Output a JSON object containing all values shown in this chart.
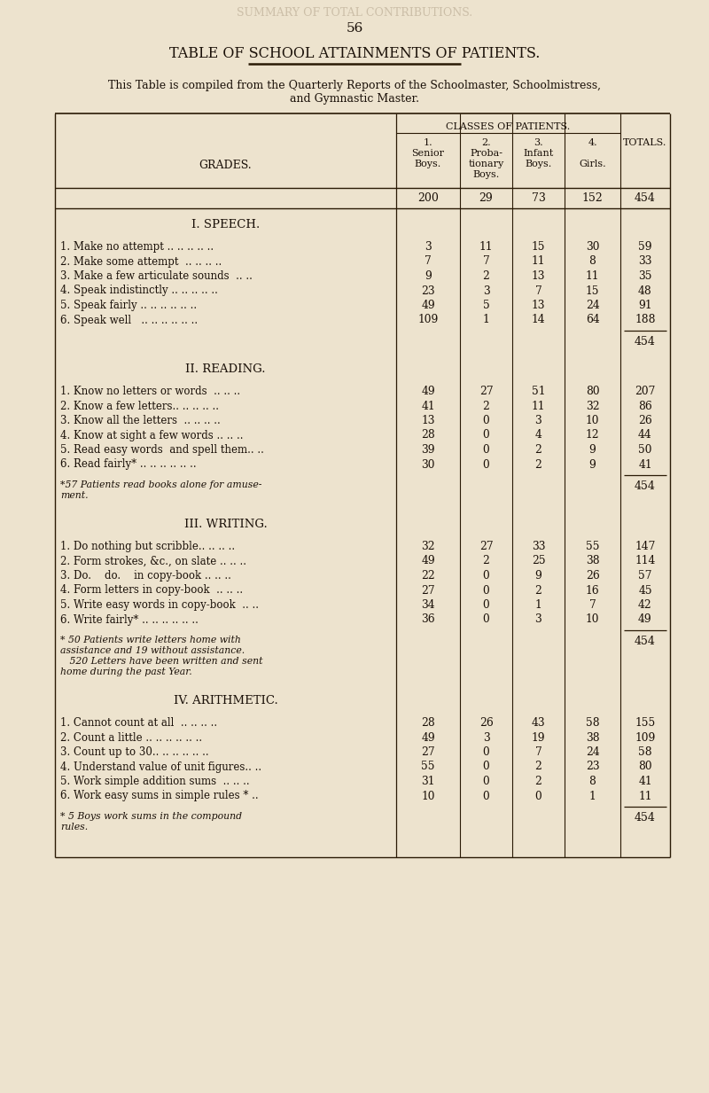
{
  "page_number": "56",
  "title": "TABLE OF SCHOOL ATTAINMENTS OF PATIENTS.",
  "subtitle1": "This Table is compiled from the Quarterly Reports of the Schoolmaster, Schoolmistress,",
  "subtitle2": "and Gymnastic Master.",
  "bg_color": "#ede3ce",
  "text_color": "#1a1008",
  "classes_header": "CLASSES OF PATIENTS.",
  "grades_label": "GRADES.",
  "totals_row": [
    "200",
    "29",
    "73",
    "152",
    "454"
  ],
  "sections": [
    {
      "title": "I. SPEECH.",
      "rows": [
        [
          "1. Make no attempt .. .. .. .. ..",
          "3",
          "11",
          "15",
          "30",
          "59"
        ],
        [
          "2. Make some attempt  .. .. .. ..",
          "7",
          "7",
          "11",
          "8",
          "33"
        ],
        [
          "3. Make a few articulate sounds  .. ..",
          "9",
          "2",
          "13",
          "11",
          "35"
        ],
        [
          "4. Speak indistinctly .. .. .. .. ..",
          "23",
          "3",
          "7",
          "15",
          "48"
        ],
        [
          "5. Speak fairly .. .. .. .. .. ..",
          "49",
          "5",
          "13",
          "24",
          "91"
        ],
        [
          "6. Speak well   .. .. .. .. .. ..",
          "109",
          "1",
          "14",
          "64",
          "188"
        ]
      ],
      "subtotal": "454",
      "footnote": null
    },
    {
      "title": "II. READING.",
      "rows": [
        [
          "1. Know no letters or words  .. .. ..",
          "49",
          "27",
          "51",
          "80",
          "207"
        ],
        [
          "2. Know a few letters.. .. .. .. ..",
          "41",
          "2",
          "11",
          "32",
          "86"
        ],
        [
          "3. Know all the letters  .. .. .. ..",
          "13",
          "0",
          "3",
          "10",
          "26"
        ],
        [
          "4. Know at sight a few words .. .. ..",
          "28",
          "0",
          "4",
          "12",
          "44"
        ],
        [
          "5. Read easy words  and spell them.. ..",
          "39",
          "0",
          "2",
          "9",
          "50"
        ],
        [
          "6. Read fairly* .. .. .. .. .. ..",
          "30",
          "0",
          "2",
          "9",
          "41"
        ]
      ],
      "subtotal": "454",
      "footnote": [
        "*57 Patients read books alone for amuse-",
        "ment."
      ]
    },
    {
      "title": "III. WRITING.",
      "rows": [
        [
          "1. Do nothing but scribble.. .. .. ..",
          "32",
          "27",
          "33",
          "55",
          "147"
        ],
        [
          "2. Form strokes, &c., on slate .. .. ..",
          "49",
          "2",
          "25",
          "38",
          "114"
        ],
        [
          "3. Do.    do.    in copy-book .. .. ..",
          "22",
          "0",
          "9",
          "26",
          "57"
        ],
        [
          "4. Form letters in copy-book  .. .. ..",
          "27",
          "0",
          "2",
          "16",
          "45"
        ],
        [
          "5. Write easy words in copy-book  .. ..",
          "34",
          "0",
          "1",
          "7",
          "42"
        ],
        [
          "6. Write fairly* .. .. .. .. .. ..",
          "36",
          "0",
          "3",
          "10",
          "49"
        ]
      ],
      "subtotal": "454",
      "footnote": [
        "* 50 Patients write letters home with",
        "assistance and 19 without assistance.",
        "   520 Letters have been written and sent",
        "home during the past Year."
      ]
    },
    {
      "title": "IV. ARITHMETIC.",
      "rows": [
        [
          "1. Cannot count at all  .. .. .. ..",
          "28",
          "26",
          "43",
          "58",
          "155"
        ],
        [
          "2. Count a little .. .. .. .. .. ..",
          "49",
          "3",
          "19",
          "38",
          "109"
        ],
        [
          "3. Count up to 30.. .. .. .. .. ..",
          "27",
          "0",
          "7",
          "24",
          "58"
        ],
        [
          "4. Understand value of unit figures.. ..",
          "55",
          "0",
          "2",
          "23",
          "80"
        ],
        [
          "5. Work simple addition sums  .. .. ..",
          "31",
          "0",
          "2",
          "8",
          "41"
        ],
        [
          "6. Work easy sums in simple rules * ..",
          "10",
          "0",
          "0",
          "1",
          "11"
        ]
      ],
      "subtotal": "454",
      "footnote": [
        "* 5 Boys work sums in the compound",
        "rules."
      ]
    }
  ]
}
